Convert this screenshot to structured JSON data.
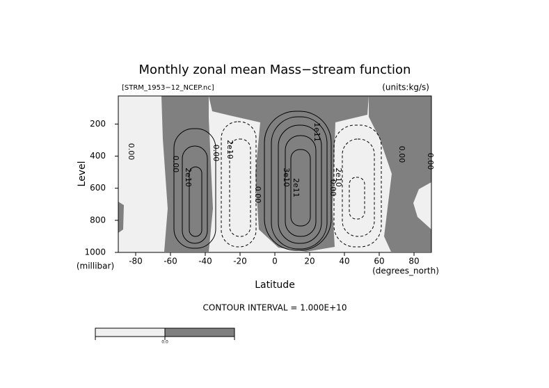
{
  "chart_data": {
    "type": "contour",
    "title": "Monthly zonal mean Mass−stream function",
    "subtitle_left": "[STRM_1953−12_NCEP.nc]",
    "subtitle_right": "(units:kg/s)",
    "x_label": "Latitude",
    "x_unit": "(degrees_north)",
    "y_label": "Level",
    "y_unit": "(millibar)",
    "xlim": [
      -90,
      90
    ],
    "xticks": [
      -80,
      -60,
      -40,
      -20,
      0,
      20,
      40,
      60,
      80
    ],
    "ylim": [
      1000,
      25
    ],
    "yticks": [
      200,
      400,
      600,
      800,
      1000
    ],
    "contour_labels": [
      "0.00",
      "0.00",
      "2e10",
      "0.00",
      "2e10",
      "0.00",
      "3e10",
      "2e11",
      "1e11",
      "0.00",
      "2e10",
      "0.00",
      "0.00"
    ],
    "contour_interval": "CONTOUR INTERVAL = 1.000E+10",
    "colorbar": {
      "colors": [
        "#f0f0f0",
        "#808080"
      ],
      "label": "0.0"
    }
  }
}
